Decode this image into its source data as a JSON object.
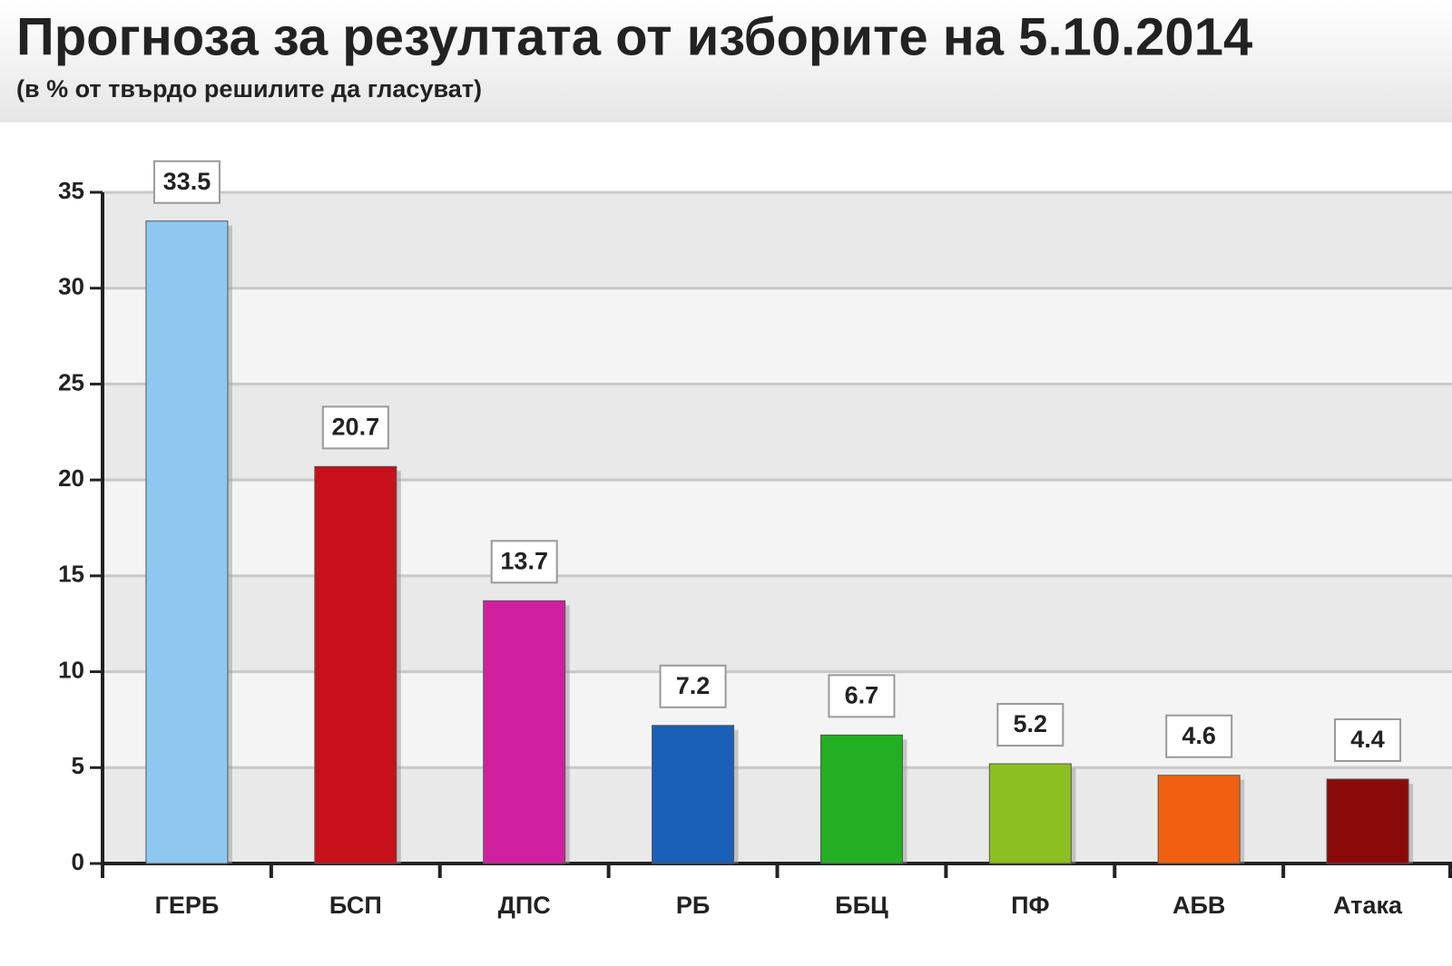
{
  "chart_data": {
    "type": "bar",
    "title": "Прогноза за резултата от изборите на 5.10.2014",
    "subtitle": "(в % от твърдо решилите да гласуват)",
    "categories": [
      "ГЕРБ",
      "БСП",
      "ДПС",
      "РБ",
      "ББЦ",
      "ПФ",
      "АБВ",
      "Атака"
    ],
    "values": [
      33.5,
      20.7,
      13.7,
      7.2,
      6.7,
      5.2,
      4.6,
      4.4
    ],
    "colors": [
      "#8ec8f0",
      "#c8101a",
      "#d020a0",
      "#1a5fb8",
      "#22b022",
      "#8cc020",
      "#f06010",
      "#8a0a0a"
    ],
    "ylim": [
      0,
      35
    ],
    "yticks": [
      0,
      5,
      10,
      15,
      20,
      25,
      30,
      35
    ],
    "grid": true
  }
}
